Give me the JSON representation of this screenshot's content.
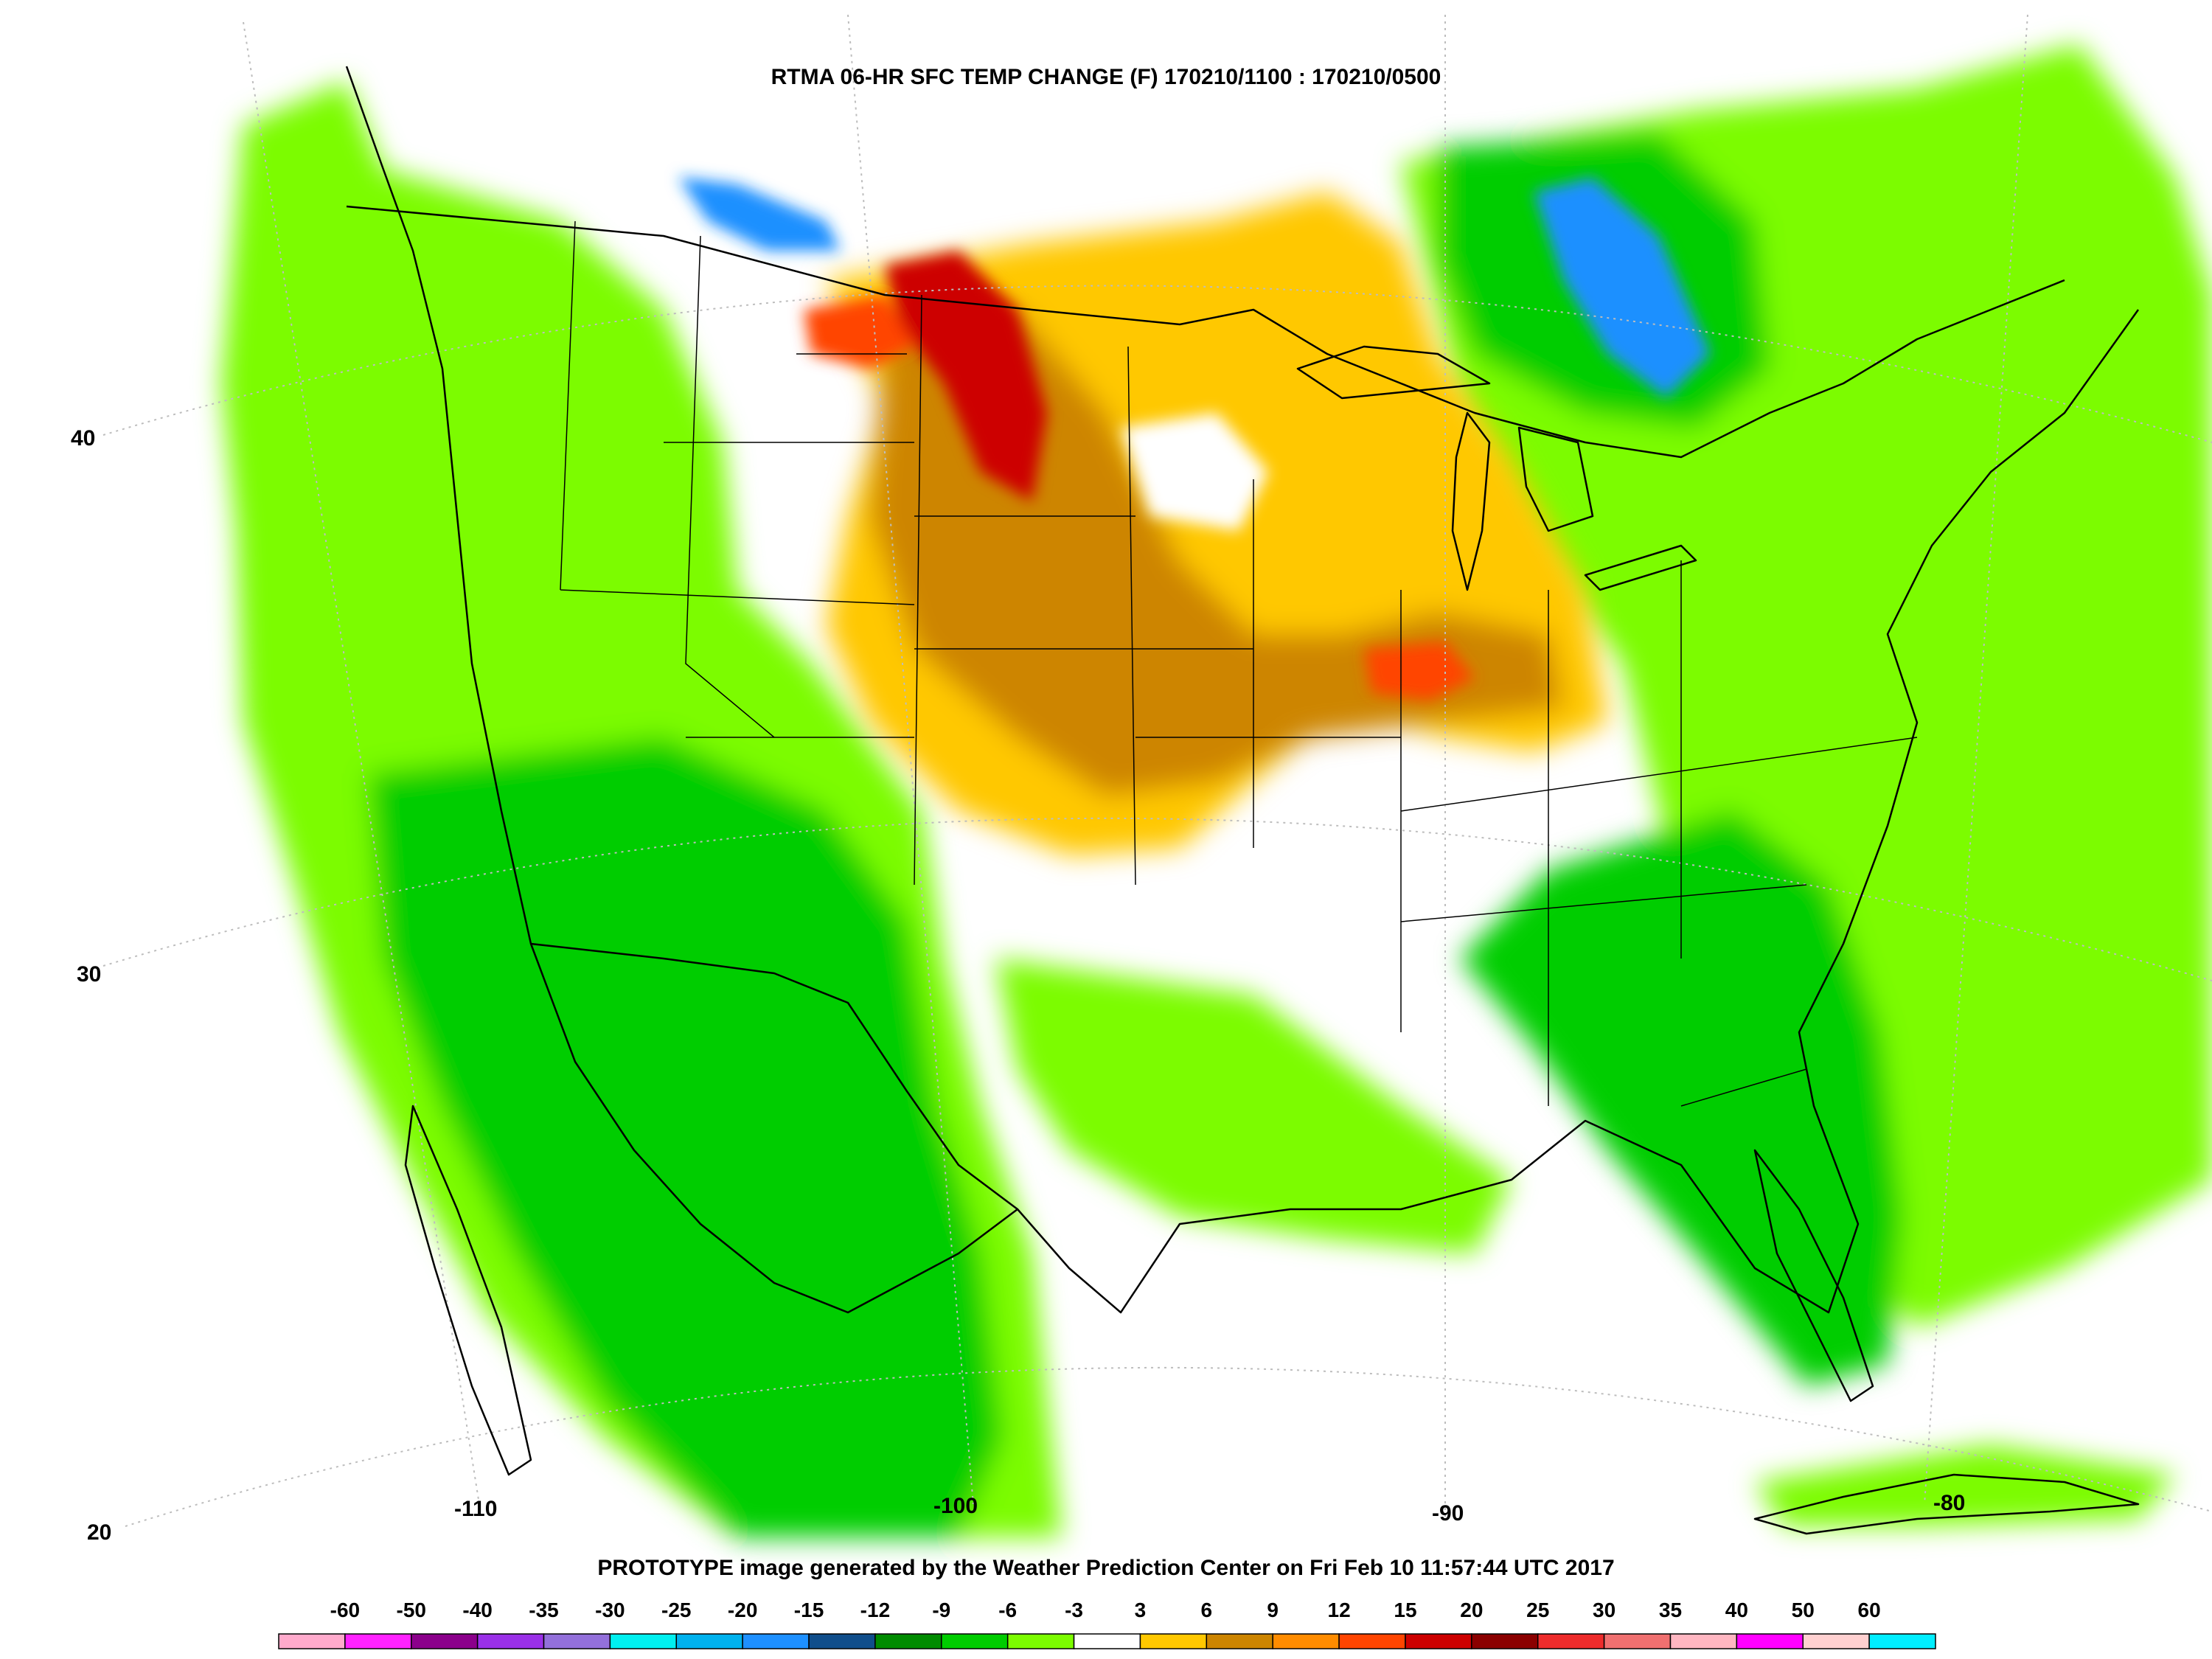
{
  "title": "RTMA 06-HR SFC TEMP CHANGE (F) 170210/1100 : 170210/0500",
  "footer": "PROTOTYPE image generated by the Weather Prediction Center on Fri Feb 10 11:57:44 UTC 2017",
  "lat_labels": [
    "40",
    "30",
    "20"
  ],
  "lon_labels": [
    "-110",
    "-100",
    "-90",
    "-80"
  ],
  "legend": {
    "labels": [
      "-60",
      "-50",
      "-40",
      "-35",
      "-30",
      "-25",
      "-20",
      "-15",
      "-12",
      "-9",
      "-6",
      "-3",
      "3",
      "6",
      "9",
      "12",
      "15",
      "20",
      "25",
      "30",
      "35",
      "40",
      "50",
      "60"
    ],
    "colors": [
      "#ffaacc",
      "#ff22ff",
      "#8b008b",
      "#9a30e8",
      "#9370db",
      "#00f0f0",
      "#00b2ee",
      "#1e90ff",
      "#104e8b",
      "#008b00",
      "#00cd00",
      "#7cfc00",
      "#ffffff",
      "#ffc800",
      "#cd8500",
      "#ff8c00",
      "#ff4500",
      "#cd0000",
      "#8b0000",
      "#ee2c2c",
      "#f07070",
      "#ffb6c1",
      "#ff00ff",
      "#ffd0d0",
      "#00eeff"
    ]
  },
  "colors": {
    "ocean": "#ffffff",
    "land": "#ffffff",
    "border": "#000000",
    "gridline": "#bdbdbd"
  }
}
